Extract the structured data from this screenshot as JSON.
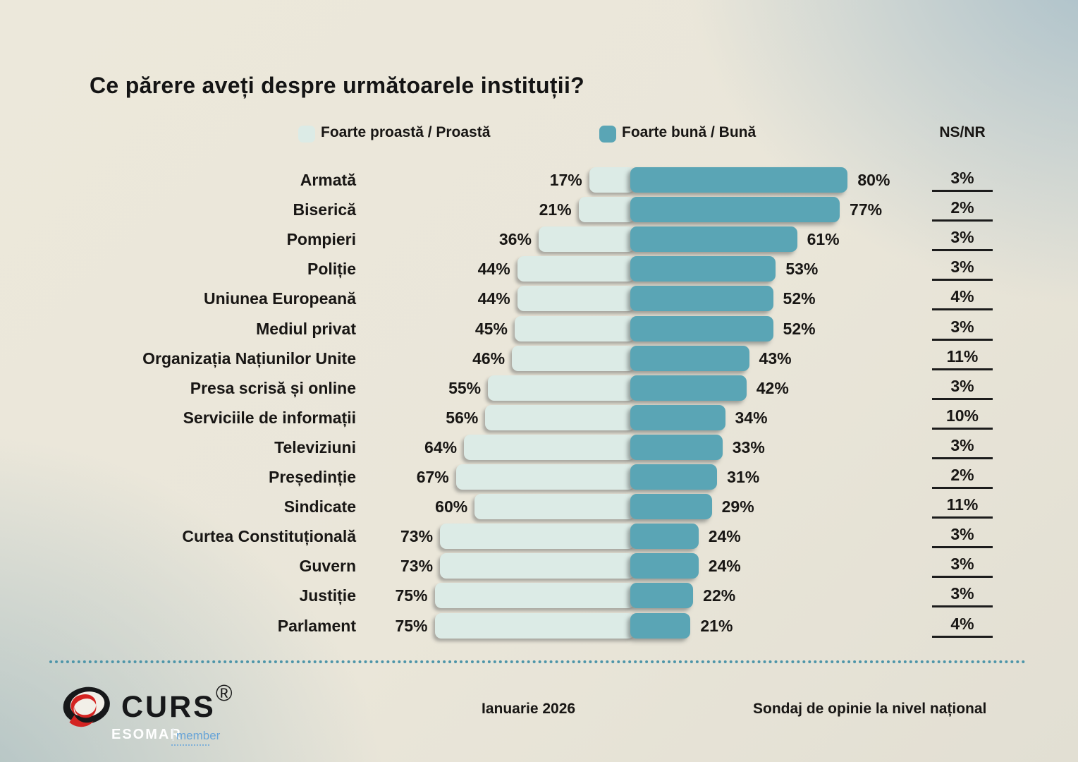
{
  "title": "Ce părere aveți despre următoarele instituții?",
  "legend": {
    "bad_label": "Foarte proastă / Proastă",
    "good_label": "Foarte bună / Bună",
    "nsnr_label": "NS/NR"
  },
  "colors": {
    "bad_bar": "#dcebe6",
    "good_bar": "#5aa5b5",
    "dotted_line": "#4e95a9",
    "text": "#141414",
    "logo_red": "#d42422",
    "logo_black": "#17181a",
    "esomar_blue": "#68a4d7"
  },
  "chart_data": {
    "type": "bar",
    "orientation": "horizontal-diverging",
    "unit": "%",
    "title": "Ce părere aveți despre următoarele instituții?",
    "legend_position": "top",
    "categories": [
      "Armată",
      "Biserică",
      "Pompieri",
      "Poliție",
      "Uniunea Europeană",
      "Mediul privat",
      "Organizația Națiunilor Unite",
      "Presa scrisă și online",
      "Serviciile de informații",
      "Televiziuni",
      "Președinție",
      "Sindicate",
      "Curtea Constituțională",
      "Guvern",
      "Justiție",
      "Parlament"
    ],
    "series": [
      {
        "name": "Foarte proastă / Proastă",
        "values": [
          17,
          21,
          36,
          44,
          44,
          45,
          46,
          55,
          56,
          64,
          67,
          60,
          73,
          73,
          75,
          75
        ]
      },
      {
        "name": "Foarte bună / Bună",
        "values": [
          80,
          77,
          61,
          53,
          52,
          52,
          43,
          42,
          34,
          33,
          31,
          29,
          24,
          24,
          22,
          21
        ]
      },
      {
        "name": "NS/NR",
        "values": [
          3,
          2,
          3,
          3,
          4,
          3,
          11,
          3,
          10,
          3,
          2,
          11,
          3,
          3,
          3,
          4
        ]
      }
    ]
  },
  "footer": {
    "logo_text": "CURS",
    "registered_mark": "®",
    "esomar": "ESOMAR",
    "esomar_sep": "|",
    "esomar_member": "member",
    "date": "Ianuarie 2026",
    "note": "Sondaj de opinie la nivel național"
  }
}
